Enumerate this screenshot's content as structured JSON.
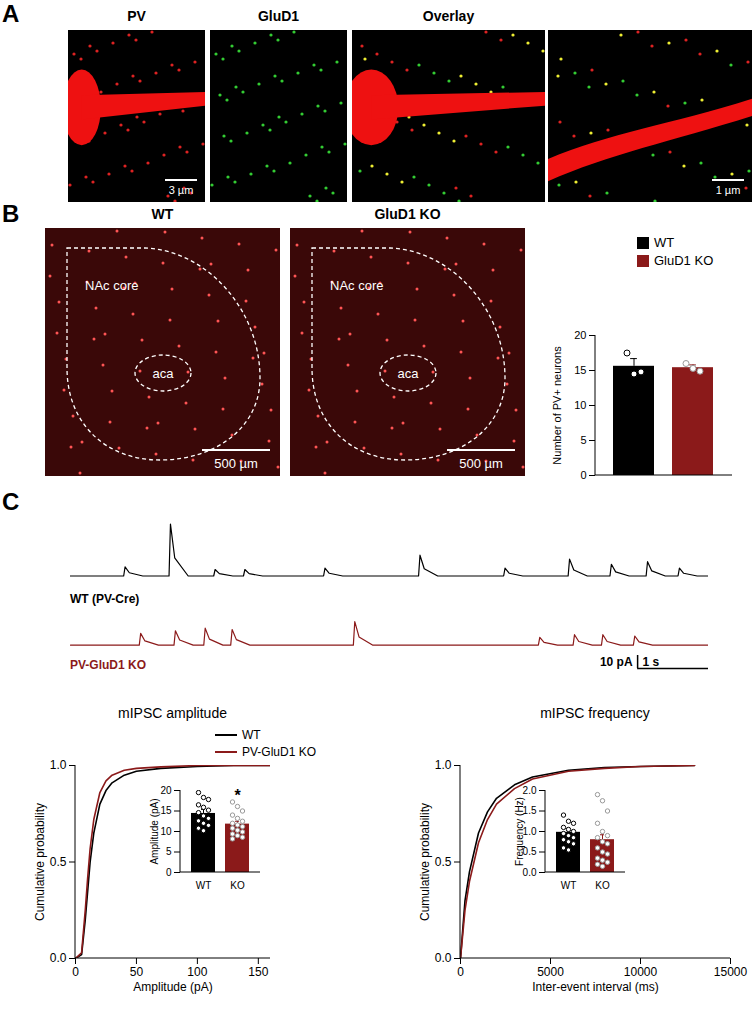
{
  "panels": {
    "A": {
      "label": "A",
      "images": [
        {
          "title": "PV",
          "scale_bar": "3 µm"
        },
        {
          "title": "GluD1"
        },
        {
          "title": "Overlay"
        },
        {
          "scale_bar": "1 µm"
        }
      ]
    },
    "B": {
      "label": "B",
      "images": [
        {
          "title": "WT",
          "region": "NAc core",
          "inner_region": "aca",
          "scale_bar": "500 µm"
        },
        {
          "title": "GluD1 KO",
          "region": "NAc core",
          "inner_region": "aca",
          "scale_bar": "500 µm"
        }
      ]
    },
    "C": {
      "label": "C"
    }
  },
  "chart_data": [
    {
      "type": "bar",
      "ylabel": "Number of PV+ neurons",
      "categories": [
        "WT",
        "GluD1 KO"
      ],
      "values": [
        15.6,
        15.4
      ],
      "errors": [
        1.1,
        0.4
      ],
      "points": [
        [
          17.5,
          14.5,
          14.8
        ],
        [
          16.0,
          15.3,
          14.9
        ]
      ],
      "colors": [
        "#000000",
        "#8b1a1a"
      ],
      "ylim": [
        0,
        20
      ],
      "yticks": [
        0,
        5,
        10,
        15,
        20
      ],
      "legend": "top-right",
      "tick_labels": "y"
    },
    {
      "type": "line",
      "tick_labels": false,
      "xlim": [
        0,
        9
      ],
      "ylim": [
        -5,
        45
      ],
      "x": [
        0,
        0.75,
        0.77,
        0.83,
        1.02,
        1.39,
        1.41,
        1.47,
        1.66,
        2.02,
        2.04,
        2.1,
        2.29,
        2.44,
        2.46,
        2.52,
        2.71,
        3.57,
        3.59,
        3.65,
        3.84,
        4.91,
        4.93,
        4.99,
        5.18,
        6.11,
        6.13,
        6.19,
        6.38,
        7.02,
        7.04,
        7.1,
        7.29,
        7.61,
        7.63,
        7.69,
        7.88,
        8.12,
        8.14,
        8.2,
        8.39,
        8.57,
        8.59,
        8.65,
        8.84,
        9
      ],
      "series": [
        {
          "name": "WT (PV-Cre)",
          "color": "#000000",
          "values": [
            0,
            0,
            7,
            2.5,
            0,
            0,
            40,
            14,
            0,
            0,
            5,
            1.8,
            0,
            0,
            5,
            1.8,
            0,
            0,
            6,
            2.1,
            0,
            0,
            16,
            5.6,
            0,
            0,
            6,
            2.1,
            0,
            0,
            13,
            4.6,
            0,
            0,
            9,
            3.2,
            0,
            0,
            11,
            3.9,
            0,
            0,
            6,
            2.1,
            0,
            0
          ]
        }
      ]
    },
    {
      "type": "line",
      "tick_labels": false,
      "xlim": [
        0,
        9
      ],
      "ylim": [
        -18,
        22
      ],
      "x": [
        0,
        0.97,
        0.99,
        1.05,
        1.24,
        1.46,
        1.48,
        1.54,
        1.73,
        1.88,
        1.9,
        1.96,
        2.15,
        2.26,
        2.28,
        2.34,
        2.53,
        3.99,
        4.01,
        4.07,
        4.26,
        6.6,
        6.62,
        6.68,
        6.87,
        7.09,
        7.11,
        7.17,
        7.36,
        7.49,
        7.51,
        7.57,
        7.76,
        7.94,
        7.96,
        8.02,
        8.21,
        9
      ],
      "series": [
        {
          "name": "PV-GluD1 KO",
          "color": "#8b1a1a",
          "values": [
            0,
            0,
            9,
            3.2,
            0,
            0,
            11,
            3.9,
            0,
            0,
            13,
            4.6,
            0,
            0,
            12,
            4.2,
            0,
            0,
            18,
            6.3,
            0,
            0,
            6,
            2.1,
            0,
            0,
            8,
            2.8,
            0,
            0,
            8,
            2.8,
            0,
            0,
            7,
            2.5,
            0,
            0
          ]
        }
      ],
      "scale_bar": {
        "x": 1,
        "y": 10,
        "x_label": "1 s",
        "y_label": "10 pA"
      }
    },
    {
      "type": "line",
      "title": "mIPSC amplitude",
      "xlabel": "Amplitude (pA)",
      "ylabel": "Cumulative probability",
      "xlim": [
        0,
        160
      ],
      "ylim": [
        0,
        1
      ],
      "xticks": [
        0,
        50,
        100,
        150
      ],
      "yticks": [
        {
          "value": 0,
          "label": "0.0"
        },
        {
          "value": 0.5,
          "label": "0.5"
        },
        {
          "value": 1,
          "label": "1.0"
        }
      ],
      "legend": "top-right",
      "x": [
        0,
        5,
        8,
        10,
        12,
        15,
        20,
        25,
        30,
        40,
        50,
        70,
        100,
        130,
        160
      ],
      "series": [
        {
          "name": "WT",
          "color": "#000000",
          "values": [
            0,
            0.02,
            0.2,
            0.35,
            0.5,
            0.65,
            0.8,
            0.87,
            0.91,
            0.95,
            0.97,
            0.985,
            0.995,
            1,
            1
          ]
        },
        {
          "name": "PV-GluD1 KO",
          "color": "#8b1a1a",
          "values": [
            0,
            0.03,
            0.25,
            0.42,
            0.57,
            0.72,
            0.86,
            0.92,
            0.95,
            0.975,
            0.985,
            0.993,
            1,
            1,
            1
          ]
        }
      ]
    },
    {
      "type": "bar",
      "ylabel": "Amplitude (pA)",
      "categories": [
        "WT",
        "KO"
      ],
      "values": [
        14.4,
        11.8
      ],
      "errors": [
        1.0,
        0.7
      ],
      "colors": [
        "#000000",
        "#8b1a1a"
      ],
      "ylim": [
        0,
        20
      ],
      "yticks": [
        0,
        5,
        10,
        15,
        20
      ],
      "points": [
        [
          19.5,
          18.3,
          17.8,
          16.5,
          15.9,
          15.2,
          14.6,
          13.8,
          13.2,
          12.6,
          12.0,
          11.5,
          10.8,
          10.2
        ],
        [
          17.2,
          16.1,
          15.0,
          14.0,
          13.2,
          12.5,
          12.0,
          11.6,
          11.2,
          10.8,
          10.3,
          9.9,
          9.4,
          9.0,
          8.6,
          8.2
        ]
      ],
      "annotations": [
        {
          "category": "KO",
          "text": "*"
        }
      ]
    },
    {
      "type": "line",
      "title": "mIPSC frequency",
      "xlabel": "Inter-event interval (ms)",
      "ylabel": "Cumulative probability",
      "xlim": [
        0,
        15000
      ],
      "ylim": [
        0,
        1
      ],
      "xticks": [
        0,
        5000,
        10000,
        15000
      ],
      "yticks": [
        {
          "value": 0,
          "label": "0.0"
        },
        {
          "value": 0.5,
          "label": "0.5"
        },
        {
          "value": 1,
          "label": "1.0"
        }
      ],
      "x": [
        0,
        250,
        500,
        1000,
        1500,
        2000,
        3000,
        4000,
        6000,
        8000,
        10000,
        13000
      ],
      "series": [
        {
          "name": "WT",
          "color": "#000000",
          "values": [
            0,
            0.3,
            0.45,
            0.65,
            0.76,
            0.83,
            0.9,
            0.94,
            0.975,
            0.99,
            0.995,
            1
          ]
        },
        {
          "name": "PV-GluD1 KO",
          "color": "#8b1a1a",
          "values": [
            0,
            0.25,
            0.4,
            0.6,
            0.72,
            0.8,
            0.88,
            0.93,
            0.97,
            0.985,
            0.995,
            1
          ]
        }
      ]
    },
    {
      "type": "bar",
      "ylabel": "Frequency (Hz)",
      "categories": [
        "WT",
        "KO"
      ],
      "values": [
        0.98,
        0.8
      ],
      "errors": [
        0.08,
        0.12
      ],
      "colors": [
        "#000000",
        "#8b1a1a"
      ],
      "ylim": [
        0,
        2
      ],
      "yticks": [
        {
          "value": 0,
          "label": "0.0"
        },
        {
          "value": 0.5,
          "label": "0.5"
        },
        {
          "value": 1,
          "label": "1.0"
        },
        {
          "value": 1.5,
          "label": "1.5"
        },
        {
          "value": 2,
          "label": "2.0"
        }
      ],
      "points": [
        [
          1.4,
          1.25,
          1.2,
          1.1,
          1.05,
          1.0,
          0.95,
          0.9,
          0.85,
          0.8,
          0.75,
          0.7,
          0.6,
          0.55
        ],
        [
          1.9,
          1.75,
          1.5,
          1.2,
          1.0,
          0.9,
          0.85,
          0.75,
          0.7,
          0.6,
          0.5,
          0.45,
          0.35,
          0.3,
          0.25,
          0.2,
          0.15
        ]
      ]
    }
  ]
}
